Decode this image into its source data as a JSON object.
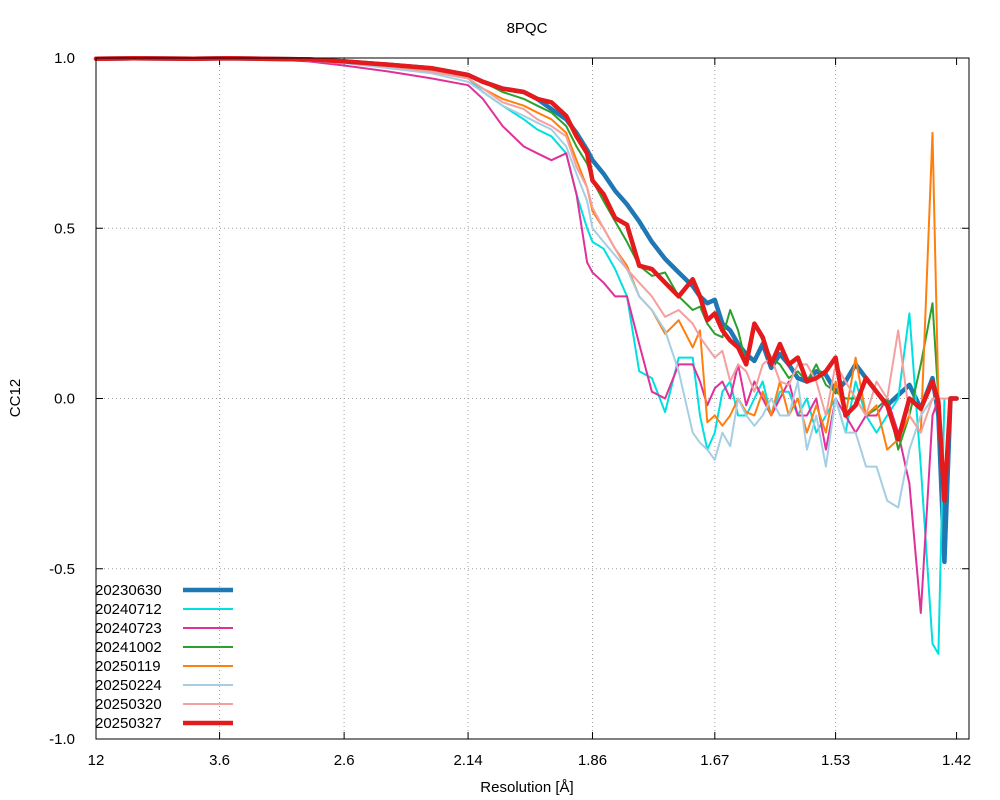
{
  "chart_data": {
    "type": "line",
    "title": "8PQC",
    "xlabel": "Resolution [Å]",
    "ylabel": "CC12",
    "ylim": [
      -1.0,
      1.0
    ],
    "x_scale": "inverse-square resolution (1/d^2)",
    "xlim": [
      12,
      1.41
    ],
    "x_ticks": [
      12,
      3.6,
      2.6,
      2.14,
      1.86,
      1.67,
      1.53,
      1.42
    ],
    "x_tick_labels": [
      "12",
      "3.6",
      "2.6",
      "2.14",
      "1.86",
      "1.67",
      "1.53",
      "1.42"
    ],
    "y_ticks": [
      1.0,
      0.5,
      0.0,
      -0.5,
      -1.0
    ],
    "y_tick_labels": [
      "1.0",
      "0.5",
      "0.0",
      "-0.5",
      "-1.0"
    ],
    "grid": true,
    "legend_position": "bottom-left",
    "x": [
      12,
      6,
      4,
      3.5,
      3,
      2.8,
      2.6,
      2.4,
      2.25,
      2.14,
      2.1,
      2.05,
      2.0,
      1.97,
      1.94,
      1.91,
      1.89,
      1.87,
      1.86,
      1.84,
      1.82,
      1.8,
      1.78,
      1.76,
      1.74,
      1.72,
      1.7,
      1.69,
      1.68,
      1.67,
      1.66,
      1.65,
      1.64,
      1.63,
      1.62,
      1.61,
      1.6,
      1.59,
      1.58,
      1.57,
      1.56,
      1.55,
      1.54,
      1.53,
      1.52,
      1.51,
      1.5,
      1.49,
      1.48,
      1.47,
      1.46,
      1.45,
      1.44,
      1.435,
      1.43,
      1.425,
      1.42
    ],
    "series": [
      {
        "name": "20230630",
        "color": "#1f77b4",
        "width": 4.5,
        "values": [
          0.998,
          0.999,
          0.998,
          0.999,
          0.997,
          0.996,
          0.99,
          0.98,
          0.97,
          0.95,
          0.93,
          0.91,
          0.9,
          0.88,
          0.85,
          0.82,
          0.78,
          0.73,
          0.7,
          0.66,
          0.61,
          0.57,
          0.52,
          0.46,
          0.41,
          0.37,
          0.33,
          0.3,
          0.28,
          0.29,
          0.22,
          0.2,
          0.16,
          0.13,
          0.11,
          0.16,
          0.09,
          0.13,
          0.1,
          0.06,
          0.05,
          0.08,
          0.07,
          0.02,
          0.05,
          0.1,
          0.06,
          0.02,
          -0.02,
          0.01,
          0.04,
          -0.03,
          0.06,
          -0.05,
          -0.48,
          0.0,
          0.0
        ]
      },
      {
        "name": "20240712",
        "color": "#00e0e0",
        "width": 2,
        "values": [
          0.998,
          0.999,
          0.998,
          0.999,
          0.997,
          0.995,
          0.988,
          0.975,
          0.96,
          0.94,
          0.9,
          0.86,
          0.82,
          0.79,
          0.77,
          0.72,
          0.6,
          0.5,
          0.46,
          0.44,
          0.38,
          0.3,
          0.08,
          0.06,
          -0.04,
          0.12,
          0.12,
          -0.05,
          -0.15,
          -0.1,
          0.02,
          0.05,
          -0.05,
          -0.05,
          0.0,
          0.05,
          -0.05,
          0.02,
          0.02,
          -0.05,
          0.0,
          -0.1,
          -0.05,
          0.0,
          -0.1,
          0.05,
          -0.05,
          -0.1,
          -0.05,
          0.0,
          0.25,
          -0.2,
          -0.72,
          -0.75,
          0.0,
          0.0,
          0.0
        ]
      },
      {
        "name": "20240723",
        "color": "#e0309a",
        "width": 2,
        "values": [
          0.998,
          0.998,
          0.997,
          0.998,
          0.995,
          0.99,
          0.978,
          0.96,
          0.94,
          0.92,
          0.88,
          0.8,
          0.74,
          0.72,
          0.7,
          0.72,
          0.6,
          0.4,
          0.37,
          0.34,
          0.3,
          0.3,
          0.16,
          0.02,
          0.0,
          0.1,
          0.1,
          0.05,
          -0.02,
          0.03,
          0.05,
          0.0,
          0.1,
          -0.02,
          0.05,
          0.0,
          -0.05,
          0.0,
          0.05,
          -0.05,
          -0.05,
          0.0,
          -0.15,
          0.0,
          -0.05,
          -0.1,
          -0.05,
          -0.05,
          0.0,
          -0.1,
          -0.25,
          -0.63,
          -0.05,
          0.0,
          0.0,
          0.0,
          0.0
        ]
      },
      {
        "name": "20241002",
        "color": "#2ca02c",
        "width": 2,
        "values": [
          0.998,
          0.999,
          0.998,
          0.999,
          0.997,
          0.996,
          0.99,
          0.98,
          0.97,
          0.95,
          0.93,
          0.9,
          0.88,
          0.86,
          0.84,
          0.8,
          0.74,
          0.69,
          0.64,
          0.58,
          0.52,
          0.46,
          0.39,
          0.36,
          0.37,
          0.3,
          0.26,
          0.27,
          0.22,
          0.19,
          0.18,
          0.26,
          0.2,
          0.1,
          0.22,
          0.17,
          0.12,
          0.1,
          0.06,
          0.08,
          0.05,
          0.1,
          0.04,
          0.02,
          0.0,
          0.0,
          -0.05,
          -0.03,
          0.0,
          -0.15,
          -0.05,
          0.1,
          0.28,
          0.0,
          0.0,
          0.0,
          0.0
        ]
      },
      {
        "name": "20250119",
        "color": "#ff7f0e",
        "width": 2,
        "values": [
          0.998,
          0.999,
          0.998,
          0.999,
          0.997,
          0.995,
          0.988,
          0.975,
          0.96,
          0.94,
          0.91,
          0.88,
          0.86,
          0.84,
          0.82,
          0.78,
          0.7,
          0.62,
          0.55,
          0.5,
          0.44,
          0.39,
          0.3,
          0.26,
          0.19,
          0.23,
          0.15,
          0.2,
          -0.07,
          -0.05,
          -0.08,
          -0.05,
          0.0,
          -0.04,
          -0.05,
          0.02,
          -0.05,
          0.05,
          -0.05,
          0.0,
          -0.1,
          -0.02,
          -0.1,
          0.05,
          -0.05,
          0.12,
          -0.05,
          -0.02,
          -0.15,
          -0.12,
          -0.05,
          -0.1,
          0.78,
          0.0,
          0.0,
          0.0,
          0.0
        ]
      },
      {
        "name": "20250224",
        "color": "#a6cee3",
        "width": 2,
        "values": [
          0.998,
          0.998,
          0.997,
          0.998,
          0.995,
          0.992,
          0.985,
          0.97,
          0.955,
          0.93,
          0.9,
          0.86,
          0.83,
          0.81,
          0.79,
          0.74,
          0.66,
          0.58,
          0.5,
          0.46,
          0.42,
          0.38,
          0.3,
          0.26,
          0.2,
          0.08,
          -0.1,
          -0.13,
          -0.15,
          -0.18,
          -0.1,
          -0.14,
          0.0,
          -0.05,
          -0.08,
          -0.05,
          0.0,
          -0.05,
          -0.05,
          0.05,
          -0.15,
          -0.05,
          -0.2,
          0.0,
          -0.1,
          -0.1,
          -0.2,
          -0.2,
          -0.3,
          -0.32,
          -0.15,
          -0.05,
          0.0,
          0.0,
          0.0,
          0.0,
          0.0
        ]
      },
      {
        "name": "20250320",
        "color": "#f4a0a0",
        "width": 2,
        "values": [
          0.998,
          0.999,
          0.998,
          0.999,
          0.997,
          0.995,
          0.988,
          0.975,
          0.96,
          0.94,
          0.91,
          0.87,
          0.85,
          0.82,
          0.8,
          0.77,
          0.68,
          0.62,
          0.56,
          0.5,
          0.44,
          0.38,
          0.34,
          0.3,
          0.24,
          0.26,
          0.22,
          0.18,
          0.15,
          0.12,
          0.14,
          0.05,
          0.1,
          0.08,
          0.02,
          0.1,
          0.12,
          0.05,
          0.04,
          0.1,
          0.1,
          0.05,
          -0.05,
          0.1,
          0.05,
          0.0,
          -0.05,
          0.05,
          0.0,
          0.2,
          -0.05,
          -0.1,
          0.0,
          0.0,
          0.0,
          0.0,
          0.0
        ]
      },
      {
        "name": "20250327",
        "color": "#e41a1c",
        "width": 4.5,
        "values": [
          0.998,
          0.999,
          0.998,
          0.999,
          0.997,
          0.996,
          0.99,
          0.98,
          0.97,
          0.95,
          0.93,
          0.91,
          0.9,
          0.88,
          0.87,
          0.83,
          0.77,
          0.72,
          0.64,
          0.6,
          0.53,
          0.51,
          0.39,
          0.38,
          0.34,
          0.3,
          0.35,
          0.3,
          0.23,
          0.25,
          0.2,
          0.17,
          0.15,
          0.1,
          0.22,
          0.18,
          0.1,
          0.16,
          0.1,
          0.12,
          0.05,
          0.06,
          0.08,
          0.12,
          -0.05,
          -0.02,
          0.06,
          0.02,
          -0.02,
          -0.12,
          0.0,
          -0.03,
          0.05,
          -0.01,
          -0.3,
          0.0,
          0.0
        ]
      }
    ]
  }
}
